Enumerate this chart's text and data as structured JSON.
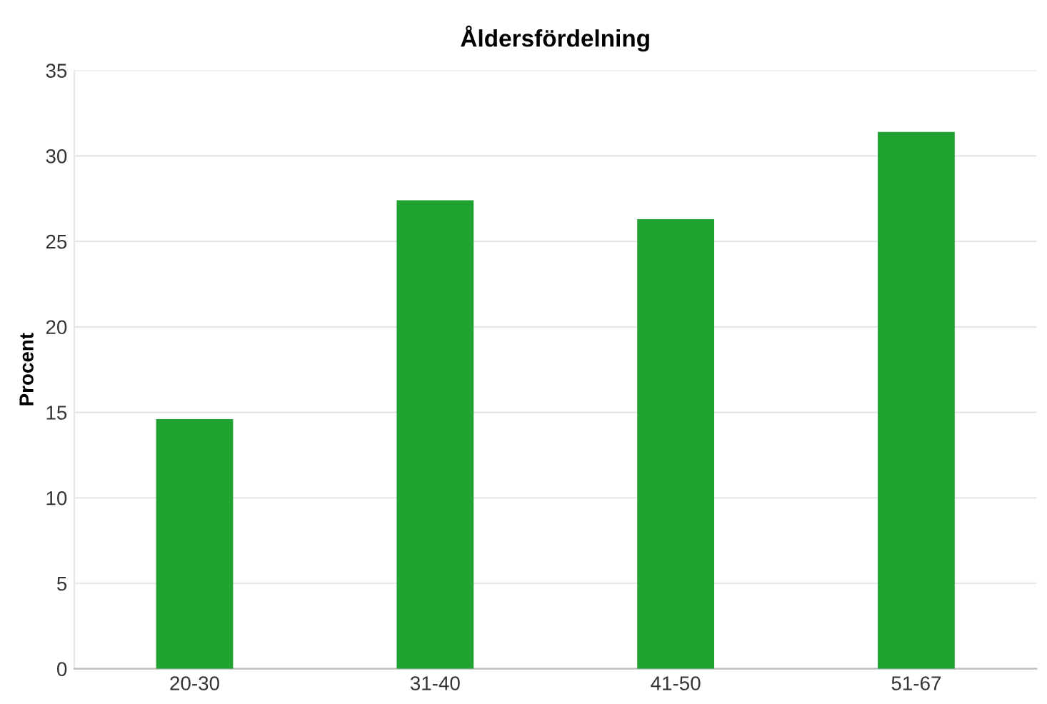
{
  "chart_data": {
    "type": "bar",
    "title": "Åldersfördelning",
    "ylabel": "Procent",
    "categories": [
      "20-30",
      "31-40",
      "41-50",
      "51-67"
    ],
    "values": [
      14.6,
      27.4,
      26.3,
      31.4
    ],
    "color": "#21a332",
    "ylim": [
      0,
      35
    ],
    "yticks": [
      0,
      5,
      10,
      15,
      20,
      25,
      30,
      35
    ],
    "grid": "y",
    "legend": false
  }
}
